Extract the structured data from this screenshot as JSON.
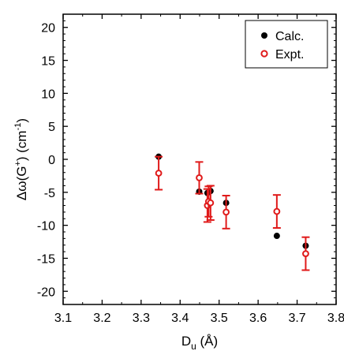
{
  "chart_data": {
    "type": "scatter",
    "title": "",
    "xlabel": {
      "base": "D",
      "sub": "u",
      "rest": " (Å)"
    },
    "ylabel": {
      "pre": "Δω(G",
      "sup1": "+",
      "mid": ") (cm",
      "sup2": "-1",
      "post": ")"
    },
    "xlim": [
      3.1,
      3.8
    ],
    "ylim": [
      -22,
      22
    ],
    "xticks": [
      3.1,
      3.2,
      3.3,
      3.4,
      3.5,
      3.6,
      3.7,
      3.8
    ],
    "xtick_labels": [
      "3.1",
      "3.2",
      "3.3",
      "3.4",
      "3.5",
      "3.6",
      "3.7",
      "3.8"
    ],
    "yticks": [
      -20,
      -15,
      -10,
      -5,
      0,
      5,
      10,
      15,
      20
    ],
    "ytick_labels": [
      "-20",
      "-15",
      "-10",
      "-5",
      "0",
      "5",
      "10",
      "15",
      "20"
    ],
    "grid": false,
    "legend": {
      "position": "top-right"
    },
    "series": [
      {
        "name": "Calc.",
        "marker": "filled-circle",
        "color": "#000000",
        "points": [
          {
            "x": 3.345,
            "y": 0.4
          },
          {
            "x": 3.449,
            "y": -4.9
          },
          {
            "x": 3.47,
            "y": -5.1
          },
          {
            "x": 3.478,
            "y": -4.8
          },
          {
            "x": 3.518,
            "y": -6.6
          },
          {
            "x": 3.648,
            "y": -11.6
          },
          {
            "x": 3.722,
            "y": -13.1
          }
        ]
      },
      {
        "name": "Expt.",
        "marker": "open-circle",
        "color": "#e01a1a",
        "points": [
          {
            "x": 3.345,
            "y": -2.1,
            "err": 2.5
          },
          {
            "x": 3.449,
            "y": -2.8,
            "err": 2.4
          },
          {
            "x": 3.47,
            "y": -7.0,
            "err": 2.5
          },
          {
            "x": 3.473,
            "y": -6.4,
            "err": 2.3
          },
          {
            "x": 3.478,
            "y": -6.6,
            "err": 2.6
          },
          {
            "x": 3.518,
            "y": -8.0,
            "err": 2.5
          },
          {
            "x": 3.648,
            "y": -7.9,
            "err": 2.5
          },
          {
            "x": 3.722,
            "y": -14.3,
            "err": 2.5
          }
        ]
      }
    ]
  }
}
